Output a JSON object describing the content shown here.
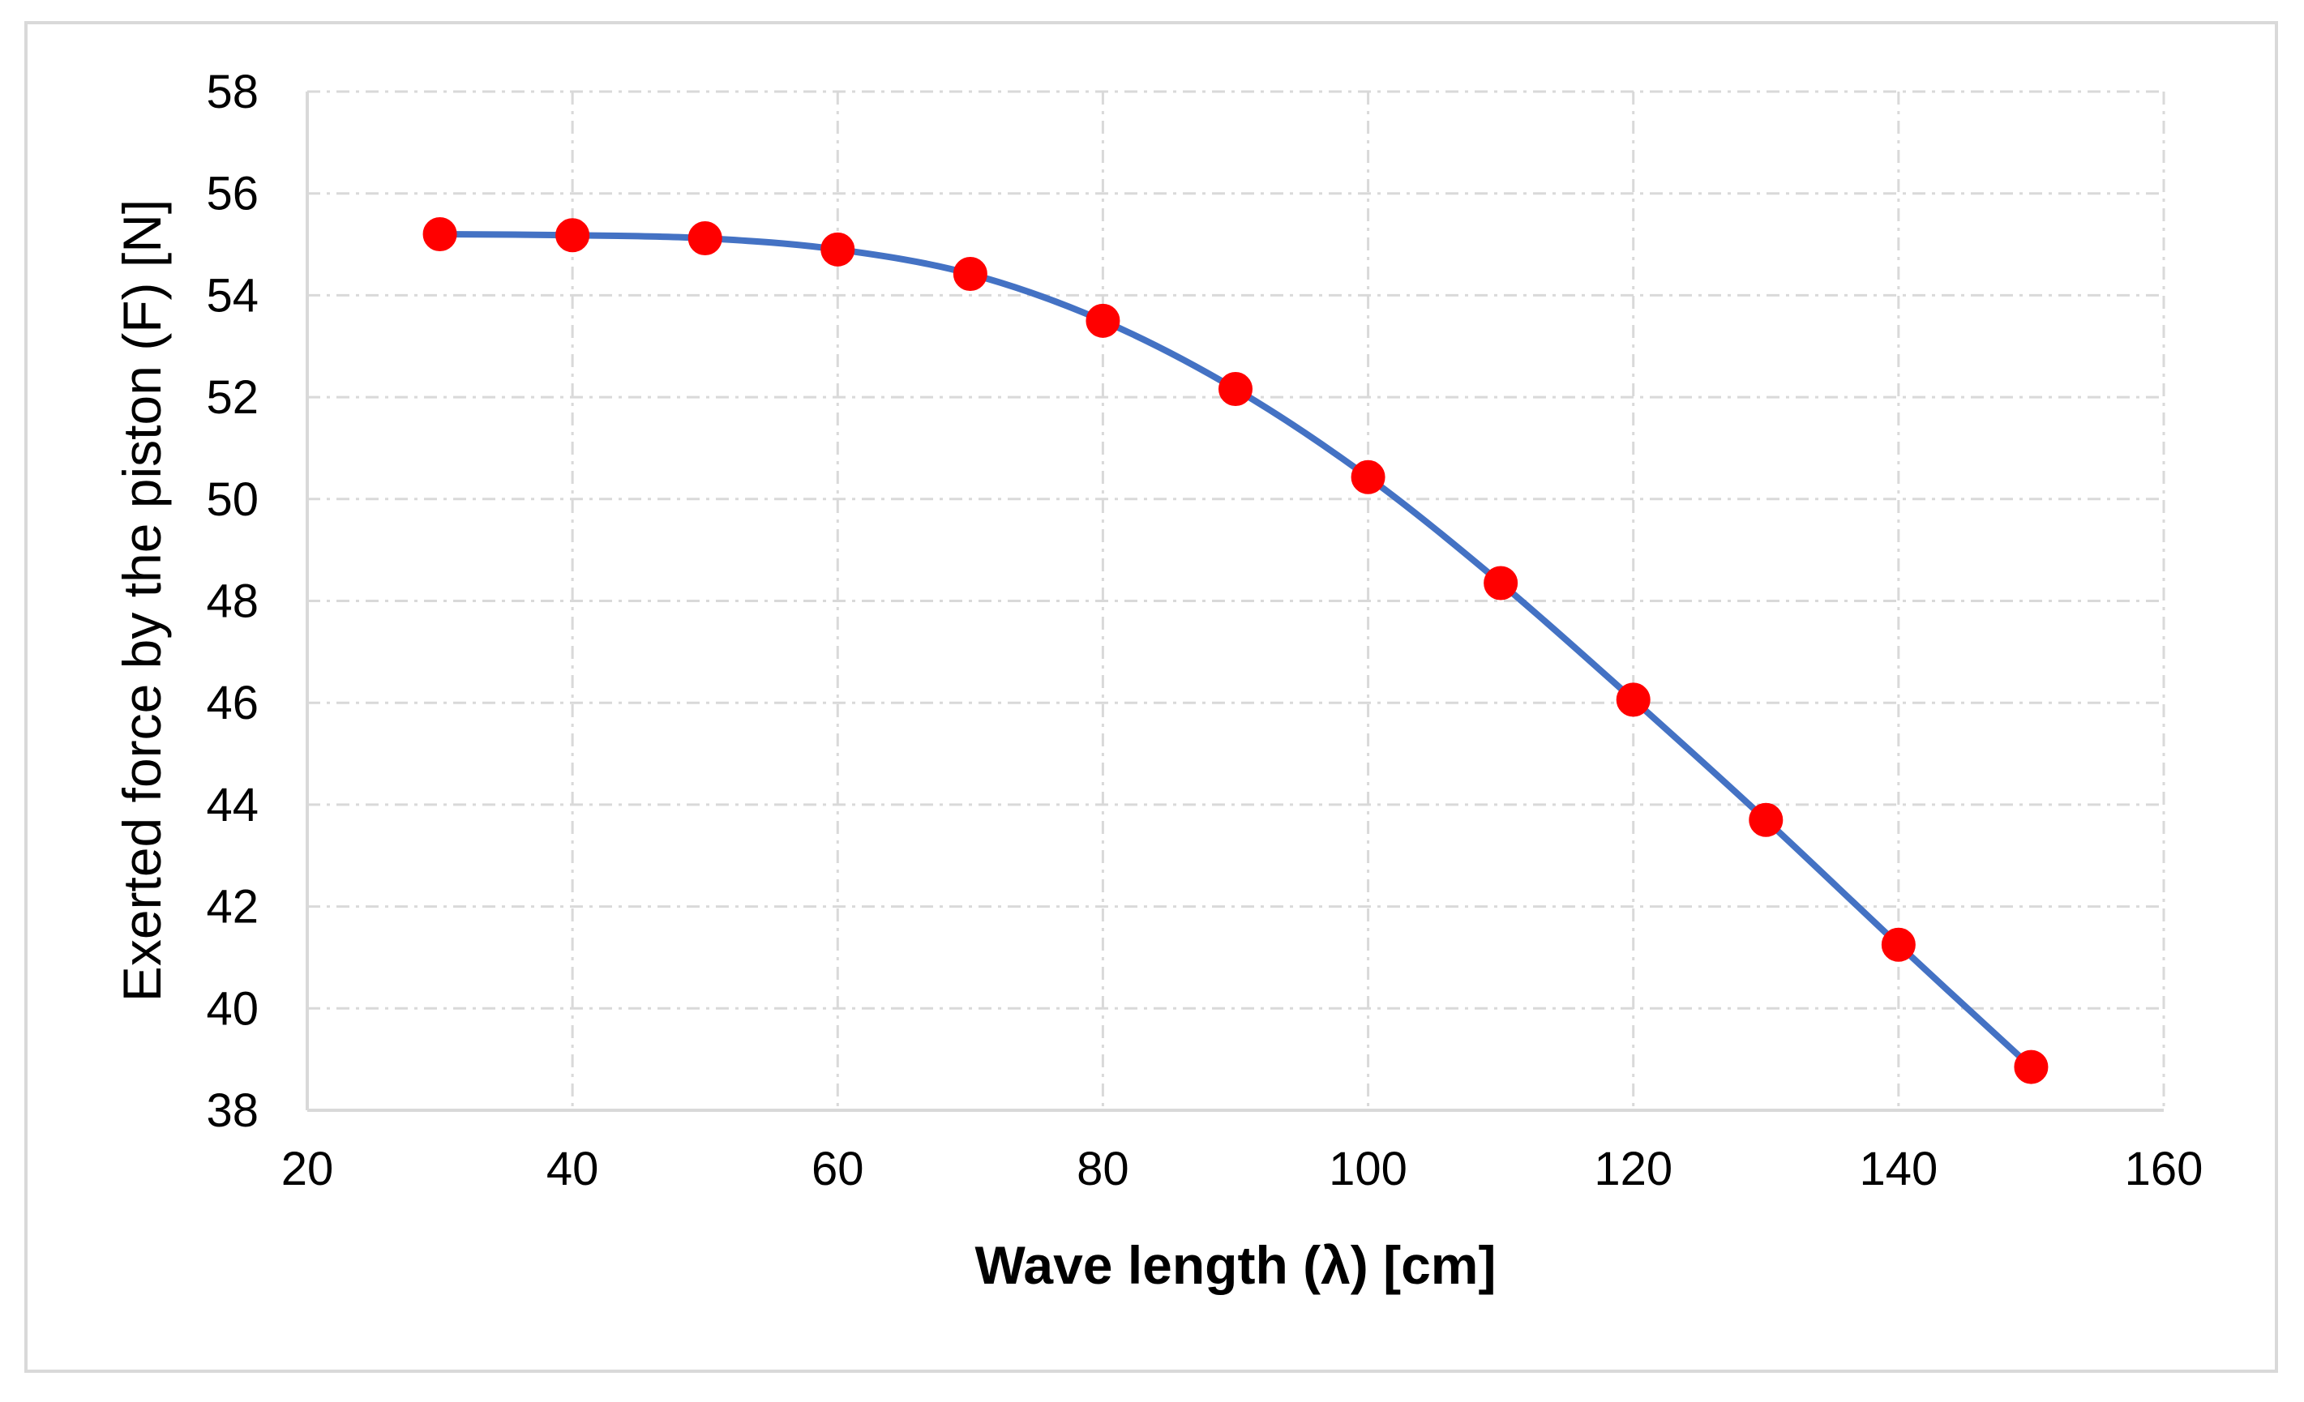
{
  "chart_data": {
    "type": "line",
    "title": "",
    "xlabel": "Wave length (λ) [cm]",
    "ylabel": "Exerted force by the piston (F) [N]",
    "xlim": [
      20,
      160
    ],
    "ylim": [
      38,
      58
    ],
    "xticks": [
      20,
      40,
      60,
      80,
      100,
      120,
      140,
      160
    ],
    "yticks": [
      38,
      40,
      42,
      44,
      46,
      48,
      50,
      52,
      54,
      56,
      58
    ],
    "grid": true,
    "legend": "none",
    "series": [
      {
        "name": "Exerted force",
        "x": [
          30,
          40,
          50,
          60,
          70,
          80,
          90,
          100,
          110,
          120,
          130,
          140,
          150
        ],
        "values": [
          55.2,
          55.18,
          55.12,
          54.9,
          54.42,
          53.5,
          52.16,
          50.43,
          48.35,
          46.06,
          43.7,
          41.25,
          38.85
        ],
        "line_color": "#4472c4",
        "marker_color": "#ff0000",
        "smooth": true
      }
    ]
  }
}
